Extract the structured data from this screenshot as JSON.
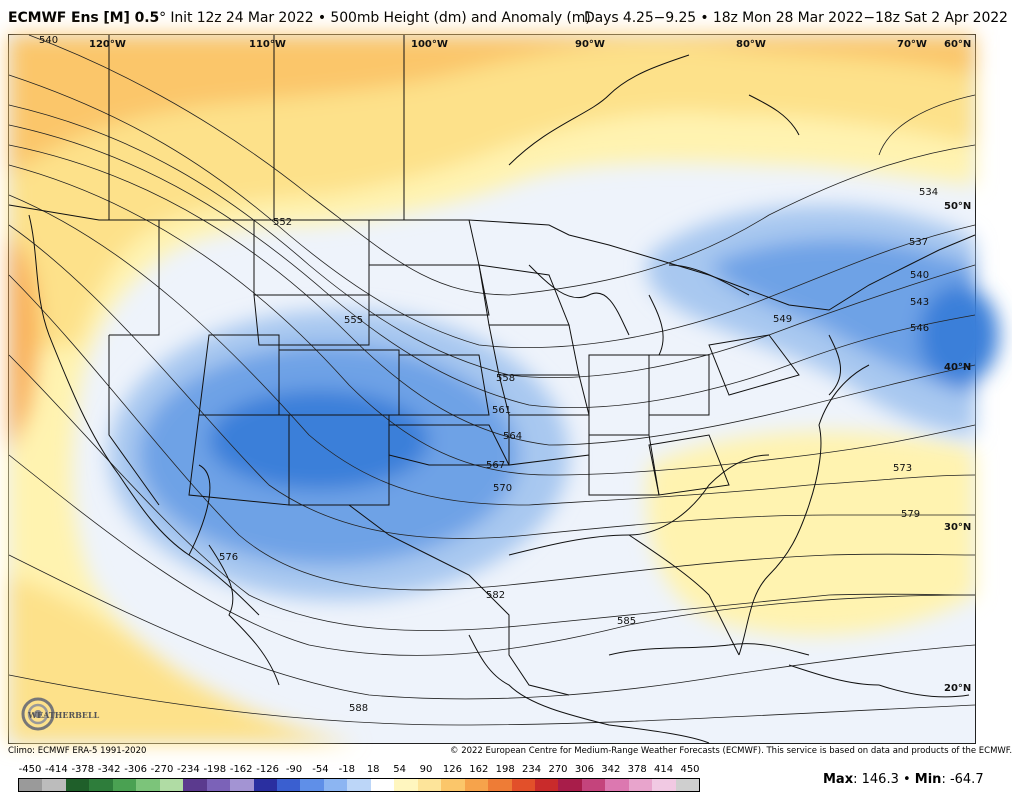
{
  "header": {
    "model": "ECMWF Ens [M] 0.5",
    "degree": "°",
    "init": "Init 12z 24 Mar 2022",
    "sep1": " • ",
    "field": "500mb Height (dm) and Anomaly (m)",
    "days": "Days 4.25−9.25 • 18z Mon 28 Mar 2022−18z Sat 2 Apr 2022"
  },
  "map": {
    "lon_labels": [
      "120°W",
      "110°W",
      "100°W",
      "90°W",
      "80°W",
      "70°W",
      "60°N"
    ],
    "lat_labels": [
      "50°N",
      "40°N",
      "30°N",
      "20°N"
    ],
    "contour_labels": [
      "540",
      "552",
      "555",
      "558",
      "561",
      "564",
      "567",
      "570",
      "573",
      "576",
      "579",
      "582",
      "585",
      "588",
      "534",
      "537",
      "540",
      "543",
      "546",
      "549"
    ],
    "anomaly_colors": {
      "strong_neg": "#3b7fd9",
      "neg": "#6ea2e6",
      "weak_neg": "#a8c8f0",
      "near_zero": "#eef3fb",
      "weak_pos": "#fff3b0",
      "pos": "#fde18a",
      "strong_pos": "#f9b15a",
      "land_line": "#111111",
      "contour": "#222222"
    }
  },
  "footer": {
    "climo": "Climo: ECMWF ERA-5 1991-2020",
    "copyright": "© 2022 European Centre for Medium-Range Weather Forecasts (ECMWF). This service is based on data and products of the ECMWF."
  },
  "scale": {
    "labels": [
      "-450",
      "-414",
      "-378",
      "-342",
      "-306",
      "-270",
      "-234",
      "-198",
      "-162",
      "-126",
      "-90",
      "-54",
      "-18",
      "18",
      "54",
      "90",
      "126",
      "162",
      "198",
      "234",
      "270",
      "306",
      "342",
      "378",
      "414",
      "450"
    ],
    "colors": [
      "#9a9a9a",
      "#bcbcbc",
      "#1f5f2a",
      "#2e7d3b",
      "#4aa152",
      "#7cc47a",
      "#b0dca4",
      "#5b3a8e",
      "#7b62b8",
      "#a394d3",
      "#2a2fa0",
      "#3a5fd0",
      "#5f8fe8",
      "#8cb5f2",
      "#bcd6f8",
      "#ffffff",
      "#fff6bf",
      "#fde49a",
      "#fbc66a",
      "#f6a34b",
      "#ee7c36",
      "#e2502a",
      "#c92b2b",
      "#a81d4a",
      "#c4447c",
      "#dc78b0",
      "#e8a4cc",
      "#f1c9e3",
      "#cfcfcf"
    ],
    "max_label": "Max",
    "max_value": "146.3",
    "min_label": "Min",
    "min_value": "-64.7",
    "sep": " • "
  },
  "logo": {
    "text": "WEATHERBELL"
  }
}
